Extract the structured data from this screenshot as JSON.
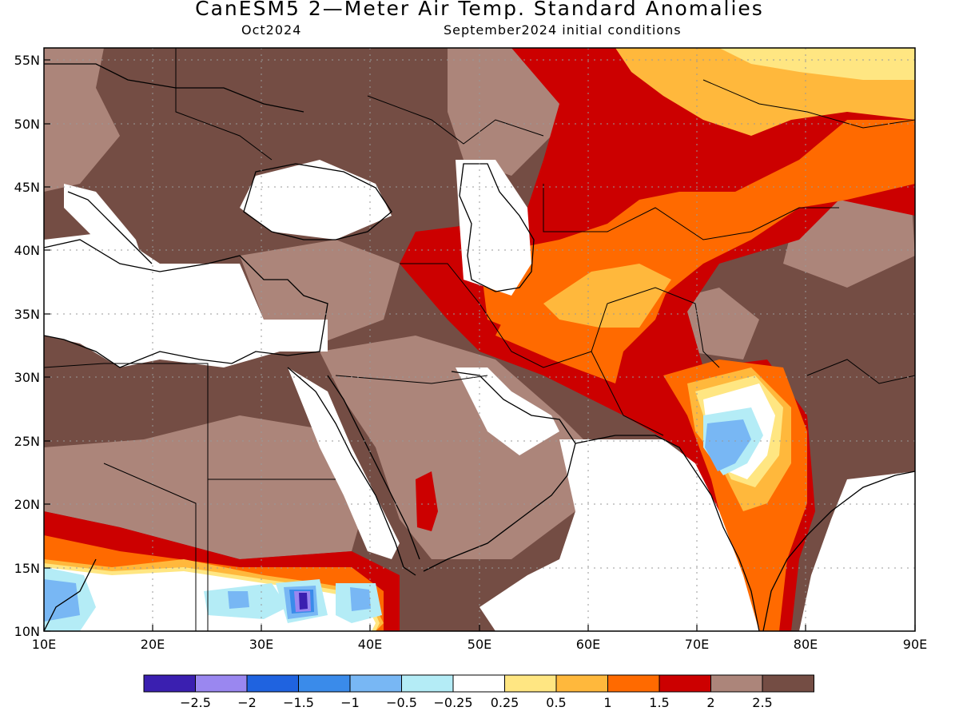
{
  "title": "CanESM5 2—Meter Air Temp. Standard Anomalies",
  "subtitle_left": "Oct2024",
  "subtitle_right": "September2024 initial conditions",
  "colors": {
    "c1": "#3a1fb0",
    "c2": "#9a87f0",
    "c3": "#1f63e0",
    "c4": "#3a8bea",
    "c5": "#78b7f4",
    "c6": "#b4ecf6",
    "c7": "#ffffff",
    "c8": "#ffe682",
    "c9": "#ffb83c",
    "c10": "#ff6a00",
    "c11": "#cc0000",
    "c12": "#ac857a",
    "c13": "#744d44"
  },
  "legend": {
    "colors": [
      "#3a1fb0",
      "#9a87f0",
      "#1f63e0",
      "#3a8bea",
      "#78b7f4",
      "#b4ecf6",
      "#ffffff",
      "#ffe682",
      "#ffb83c",
      "#ff6a00",
      "#cc0000",
      "#ac857a",
      "#744d44"
    ],
    "labels": [
      "−2.5",
      "−2",
      "−1.5",
      "−1",
      "−0.5",
      "−0.25",
      "0.25",
      "0.5",
      "1",
      "1.5",
      "2",
      "2.5"
    ]
  },
  "axes": {
    "x_labels": [
      "10E",
      "20E",
      "30E",
      "40E",
      "50E",
      "60E",
      "70E",
      "80E",
      "90E"
    ],
    "y_labels": [
      "55N",
      "50N",
      "45N",
      "40N",
      "35N",
      "30N",
      "25N",
      "20N",
      "15N",
      "10N"
    ]
  }
}
